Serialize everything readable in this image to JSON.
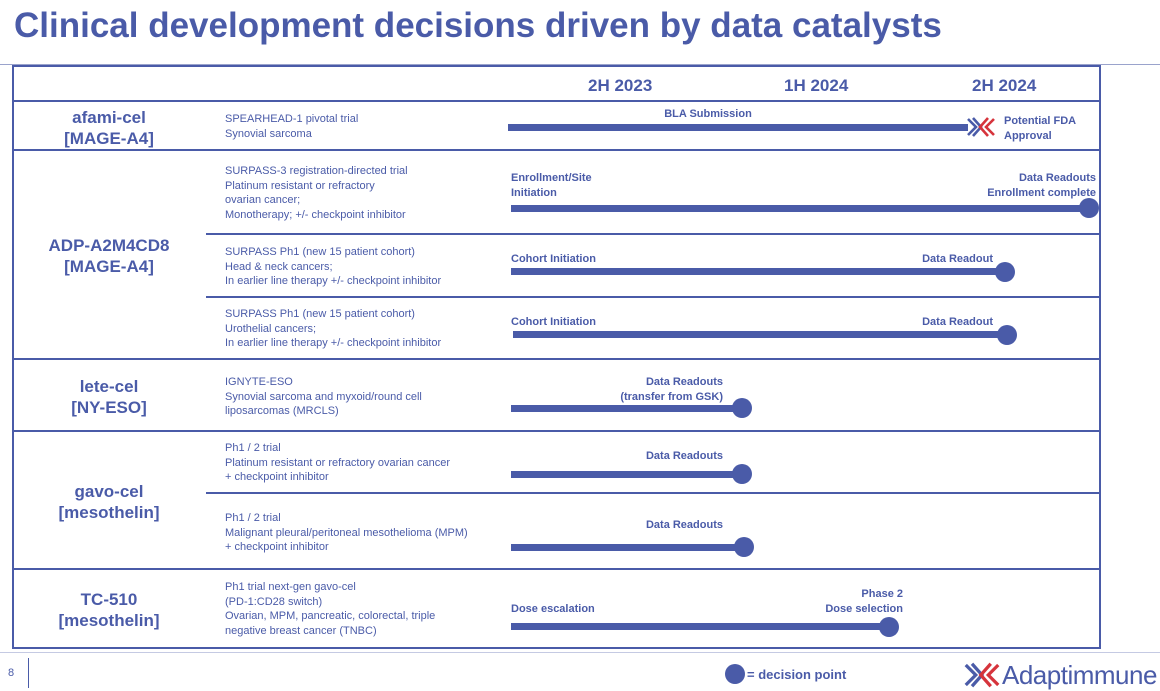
{
  "title": "Clinical development decisions driven by data catalysts",
  "columns": [
    "2H 2023",
    "1H 2024",
    "2H 2024"
  ],
  "rows": [
    {
      "drug": "afami-cel",
      "target": "[MAGE-A4]",
      "trial_lines": [
        "SPEARHEAD-1 pivotal trial",
        "Synovial sarcoma"
      ],
      "labels": {
        "mid": "BLA Submission",
        "end_1": "Potential FDA",
        "end_2": "Approval"
      }
    },
    {
      "drug": "ADP-A2M4CD8",
      "target": "[MAGE-A4]",
      "sub": [
        {
          "trial_lines": [
            "SURPASS-3 registration-directed trial",
            "Platinum resistant or refractory",
            "ovarian cancer;",
            "Monotherapy; +/- checkpoint inhibitor"
          ],
          "start_1": "Enrollment/Site",
          "start_2": "Initiation",
          "end_1": "Data Readouts",
          "end_2": "Enrollment complete"
        },
        {
          "trial_lines": [
            "SURPASS Ph1 (new 15 patient cohort)",
            "Head & neck cancers;",
            "In earlier line therapy +/- checkpoint inhibitor"
          ],
          "start": "Cohort Initiation",
          "end": "Data Readout"
        },
        {
          "trial_lines": [
            "SURPASS Ph1 (new 15 patient cohort)",
            "Urothelial cancers;",
            "In earlier line therapy +/- checkpoint inhibitor"
          ],
          "start": "Cohort Initiation",
          "end": "Data Readout"
        }
      ]
    },
    {
      "drug": "lete-cel",
      "target": "[NY-ESO]",
      "trial_lines": [
        "IGNYTE-ESO",
        "Synovial sarcoma and myxoid/round cell",
        "liposarcomas (MRCLS)"
      ],
      "end_1": "Data Readouts",
      "end_2": "(transfer from GSK)"
    },
    {
      "drug": "gavo-cel",
      "target": "[mesothelin]",
      "sub": [
        {
          "trial_lines": [
            "Ph1 / 2 trial",
            "Platinum resistant or refractory ovarian cancer",
            "+ checkpoint inhibitor"
          ],
          "end": "Data Readouts"
        },
        {
          "trial_lines": [
            "Ph1 / 2 trial",
            "Malignant pleural/peritoneal mesothelioma (MPM)",
            "+ checkpoint inhibitor"
          ],
          "end": "Data Readouts"
        }
      ]
    },
    {
      "drug": "TC-510",
      "target": "[mesothelin]",
      "trial_lines": [
        "Ph1 trial next-gen gavo-cel",
        "(PD-1:CD28 switch)",
        "Ovarian, MPM, pancreatic, colorectal, triple",
        "negative breast cancer (TNBC)"
      ],
      "start": "Dose escalation",
      "end_1": "Phase 2",
      "end_2": "Dose selection"
    }
  ],
  "footer": {
    "page_number": "8",
    "legend": "= decision point",
    "brand": "Adaptimmune"
  },
  "colors": {
    "primary": "#4a5ba8",
    "logo_red": "#d6343c"
  }
}
